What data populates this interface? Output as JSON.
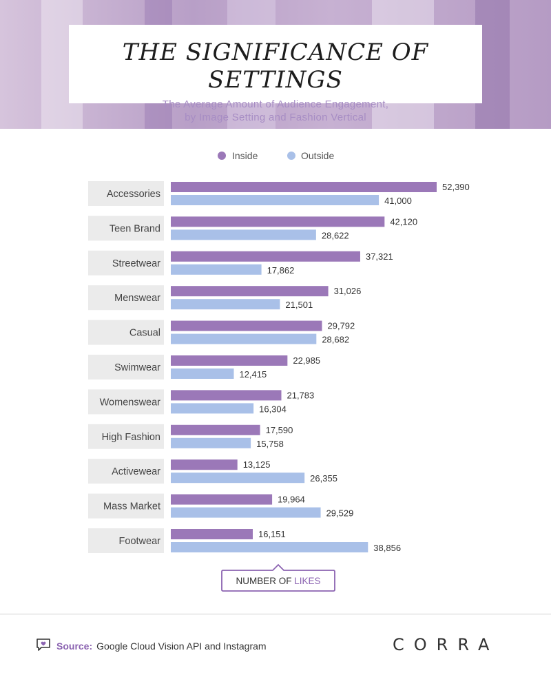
{
  "header": {
    "title": "THE SIGNIFICANCE OF SETTINGS",
    "subtitle_line1": "The Average Amount of Audience Engagement,",
    "subtitle_line2": "by Image Setting and Fashion Vertical"
  },
  "chart_data": {
    "type": "bar",
    "orientation": "horizontal",
    "categories": [
      "Accessories",
      "Teen Brand",
      "Streetwear",
      "Menswear",
      "Casual",
      "Swimwear",
      "Womenswear",
      "High Fashion",
      "Activewear",
      "Mass Market",
      "Footwear"
    ],
    "series": [
      {
        "name": "Inside",
        "color": "#9b78b8",
        "values": [
          52390,
          42120,
          37321,
          31026,
          29792,
          22985,
          21783,
          17590,
          13125,
          19964,
          16151
        ]
      },
      {
        "name": "Outside",
        "color": "#a9c0e8",
        "values": [
          41000,
          28622,
          17862,
          21501,
          28682,
          12415,
          16304,
          15758,
          26355,
          29529,
          38856
        ]
      }
    ],
    "value_labels": {
      "Inside": [
        "52,390",
        "42,120",
        "37,321",
        "31,026",
        "29,792",
        "22,985",
        "21,783",
        "17,590",
        "13,125",
        "19,964",
        "16,151"
      ],
      "Outside": [
        "41,000",
        "28,622",
        "17,862",
        "21,501",
        "28,682",
        "12,415",
        "16,304",
        "15,758",
        "26,355",
        "29,529",
        "38,856"
      ]
    },
    "xlabel_part1": "NUMBER OF",
    "xlabel_part2": "LIKES",
    "legend_position": "top-center",
    "grid": false,
    "xlim": [
      0,
      52390
    ]
  },
  "footer": {
    "source_label": "Source:",
    "source_text": "Google Cloud Vision API and Instagram",
    "brand": "CORRA"
  },
  "colors": {
    "accent": "#8b63b1",
    "label_bg": "#ebebeb"
  },
  "icons": {
    "source": "speech-bubble-heart-icon"
  }
}
